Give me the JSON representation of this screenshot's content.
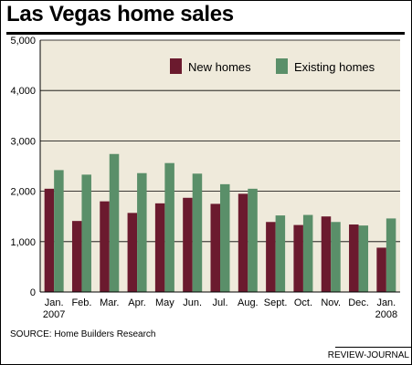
{
  "chart_data": {
    "type": "bar",
    "title": "Las Vegas home sales",
    "xlabel": "",
    "ylabel": "",
    "categories": [
      [
        "Jan.",
        "2007"
      ],
      [
        "Feb."
      ],
      [
        "Mar."
      ],
      [
        "Apr."
      ],
      [
        "May"
      ],
      [
        "Jun."
      ],
      [
        "Jul."
      ],
      [
        "Aug."
      ],
      [
        "Sept."
      ],
      [
        "Oct."
      ],
      [
        "Nov."
      ],
      [
        "Dec."
      ],
      [
        "Jan.",
        "2008"
      ]
    ],
    "series": [
      {
        "name": "New homes",
        "color": "#6b1a2e",
        "values": [
          2050,
          1410,
          1800,
          1570,
          1760,
          1870,
          1750,
          1950,
          1390,
          1330,
          1500,
          1340,
          880
        ]
      },
      {
        "name": "Existing homes",
        "color": "#5a8f69",
        "values": [
          2420,
          2330,
          2740,
          2360,
          2560,
          2350,
          2140,
          2050,
          1520,
          1530,
          1390,
          1320,
          1460
        ]
      }
    ],
    "ylim": [
      0,
      5000
    ],
    "yticks": [
      "0",
      "1,000",
      "2,000",
      "3,000",
      "4,000",
      "5,000"
    ],
    "grid": true,
    "legend_position": "top-right",
    "plot_background": "#efeadb"
  },
  "source": "SOURCE: Home Builders Research",
  "credit": "REVIEW-JOURNAL"
}
